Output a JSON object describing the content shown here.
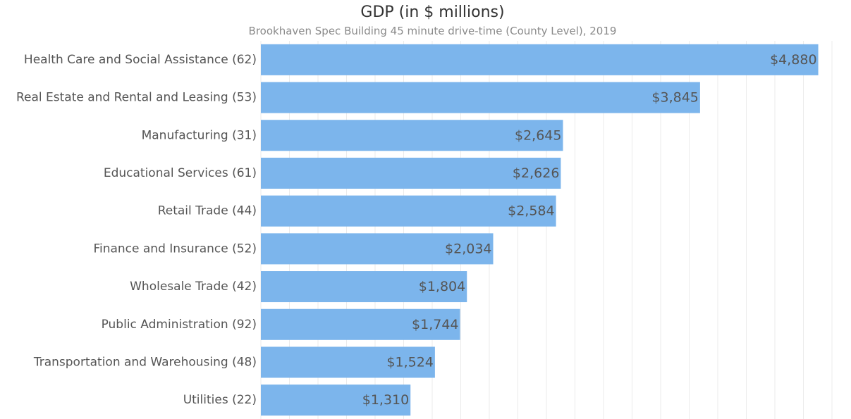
{
  "chart_data": {
    "type": "bar",
    "orientation": "horizontal",
    "title": "GDP (in $ millions)",
    "subtitle": "Brookhaven Spec Building 45 minute drive-time (County Level), 2019",
    "categories": [
      "Health Care and Social Assistance (62)",
      "Real Estate and Rental and Leasing (53)",
      "Manufacturing (31)",
      "Educational Services (61)",
      "Retail Trade (44)",
      "Finance and Insurance (52)",
      "Wholesale Trade (42)",
      "Public Administration (92)",
      "Transportation and Warehousing (48)",
      "Utilities (22)"
    ],
    "values": [
      4880,
      3845,
      2645,
      2626,
      2584,
      2034,
      1804,
      1744,
      1524,
      1310
    ],
    "data_labels": [
      "$4,880",
      "$3,845",
      "$2,645",
      "$2,626",
      "$2,584",
      "$2,034",
      "$1,804",
      "$1,744",
      "$1,524",
      "$1,310"
    ],
    "xlim": [
      0,
      5000
    ],
    "grid": true,
    "legend": "none",
    "colors": {
      "bar": "#7cb5ec",
      "grid": "#ebebeb",
      "label": "#555555",
      "title": "#333333",
      "subtitle": "#8a8a8a"
    }
  }
}
